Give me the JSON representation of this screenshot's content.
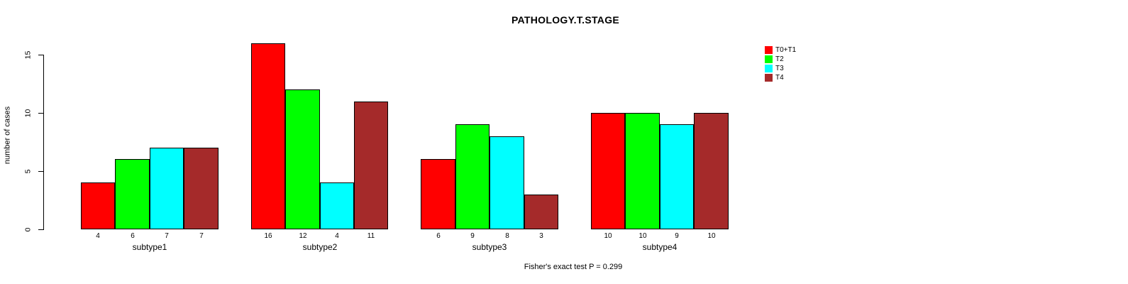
{
  "chart_data": {
    "type": "bar",
    "title": "PATHOLOGY.T.STAGE",
    "ylabel": "number of cases",
    "annotation": "Fisher's exact test P = 0.299",
    "categories": [
      "subtype1",
      "subtype2",
      "subtype3",
      "subtype4"
    ],
    "series": [
      {
        "name": "T0+T1",
        "color": "#FF0000",
        "values": [
          4,
          16,
          6,
          10
        ]
      },
      {
        "name": "T2",
        "color": "#00FF00",
        "values": [
          6,
          12,
          9,
          10
        ]
      },
      {
        "name": "T3",
        "color": "#00FFFF",
        "values": [
          7,
          4,
          8,
          9
        ]
      },
      {
        "name": "T4",
        "color": "#A52A2A",
        "values": [
          7,
          11,
          3,
          10
        ]
      }
    ],
    "yticks": [
      0,
      5,
      10,
      15
    ],
    "ylim": [
      0,
      16.5
    ],
    "bar_value_labels": true,
    "legend_position": "top-right",
    "grid": false,
    "background": "#FFFFFF"
  }
}
